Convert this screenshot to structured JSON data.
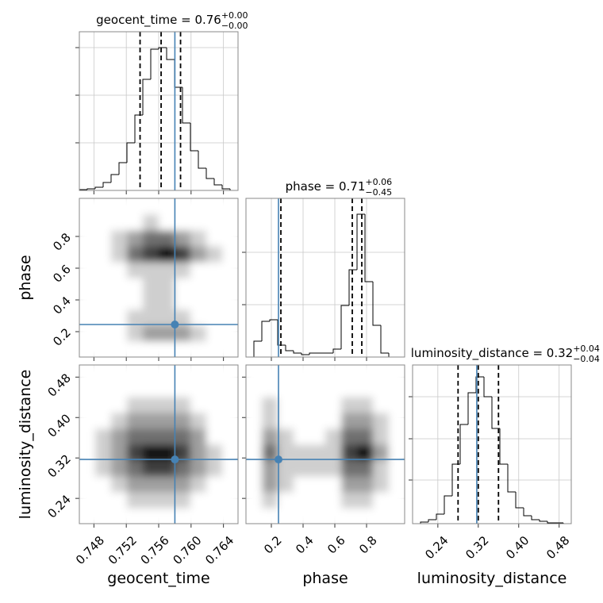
{
  "chart_data": {
    "type": "corner",
    "truth_color": "#4682b4",
    "grid": true,
    "parameters": [
      {
        "name": "geocent_time",
        "title": "geocent_time = 0.76",
        "title_plus": "+0.00",
        "title_minus": "−0.00",
        "lim": [
          0.7462,
          0.7658
        ],
        "ticks": [
          0.748,
          0.752,
          0.756,
          {
            "value": 0.76,
            "label": "0.760"
          },
          0.764
        ],
        "truth": 0.758,
        "quantiles": [
          0.7537,
          0.7563,
          0.7587
        ],
        "hist": {
          "bins": [
            0.7462,
            0.74718,
            0.74816,
            0.74914,
            0.75012,
            0.7511,
            0.75208,
            0.75306,
            0.75404,
            0.75502,
            0.756,
            0.75698,
            0.75796,
            0.75894,
            0.75992,
            0.7609,
            0.76188,
            0.76286,
            0.76384,
            0.76482,
            0.7658
          ],
          "counts": [
            1,
            2,
            4,
            10,
            20,
            35,
            60,
            95,
            140,
            178,
            180,
            165,
            130,
            85,
            50,
            28,
            15,
            7,
            2,
            0
          ],
          "ylim": [
            0,
            200
          ],
          "yticks": [
            60,
            120,
            180
          ]
        },
        "edges2d": [
          0.7462,
          0.74816,
          0.75012,
          0.75208,
          0.75404,
          0.756,
          0.75796,
          0.75992,
          0.76188,
          0.76384,
          0.7658
        ]
      },
      {
        "name": "phase",
        "title": "phase = 0.71",
        "title_plus": "+0.06",
        "title_minus": "−0.45",
        "lim": [
          0.04,
          1.04
        ],
        "ticks": [
          0.2,
          0.4,
          0.6,
          0.8
        ],
        "truth": 0.245,
        "quantiles": [
          0.26,
          0.71,
          0.77
        ],
        "hist": {
          "bins": [
            0.04,
            0.09,
            0.14,
            0.19,
            0.24,
            0.29,
            0.34,
            0.39,
            0.44,
            0.49,
            0.54,
            0.59,
            0.64,
            0.69,
            0.74,
            0.79,
            0.84,
            0.89,
            0.94,
            0.99,
            1.04
          ],
          "counts": [
            0,
            20,
            45,
            47,
            15,
            8,
            5,
            3,
            5,
            5,
            5,
            10,
            65,
            110,
            180,
            95,
            40,
            5,
            0,
            0
          ],
          "ylim": [
            0,
            200
          ],
          "yticks": [
            66,
            132
          ]
        },
        "edges2d": [
          0.04,
          0.14,
          0.24,
          0.34,
          0.44,
          0.54,
          0.64,
          0.74,
          0.84,
          0.94,
          1.04
        ]
      },
      {
        "name": "luminosity_distance",
        "title": "luminosity_distance = 0.32",
        "title_plus": "+0.04",
        "title_minus": "−0.04",
        "lim": [
          0.19,
          0.504
        ],
        "ticks": [
          0.24,
          0.32,
          {
            "value": 0.4,
            "label": "0.40"
          },
          0.48
        ],
        "truth": 0.317,
        "quantiles": [
          0.28,
          0.32,
          0.36
        ],
        "hist": {
          "bins": [
            0.19,
            0.2057,
            0.2214,
            0.2371,
            0.2528,
            0.2685,
            0.2842,
            0.2999,
            0.3156,
            0.3313,
            0.347,
            0.3627,
            0.3784,
            0.3941,
            0.4098,
            0.4255,
            0.4412,
            0.4569,
            0.4726,
            0.4883,
            0.504
          ],
          "counts": [
            0,
            2,
            5,
            12,
            35,
            75,
            125,
            165,
            185,
            160,
            120,
            75,
            40,
            20,
            10,
            5,
            3,
            1,
            1,
            0
          ],
          "ylim": [
            0,
            200
          ],
          "yticks": [
            55,
            107,
            160
          ]
        },
        "edges2d": [
          0.19,
          0.2214,
          0.2528,
          0.2842,
          0.3156,
          0.347,
          0.3784,
          0.4098,
          0.4412,
          0.4726,
          0.504
        ]
      }
    ],
    "pairs": [
      {
        "x": 0,
        "y": 1,
        "counts": [
          [
            0,
            0,
            0,
            0,
            0,
            0,
            0,
            0,
            0,
            0
          ],
          [
            0,
            0,
            0,
            1,
            2,
            2,
            2,
            1,
            0,
            0
          ],
          [
            0,
            0,
            0,
            1,
            1,
            1,
            1,
            0,
            0,
            0
          ],
          [
            0,
            0,
            0,
            0,
            1,
            1,
            0,
            0,
            0,
            0
          ],
          [
            0,
            0,
            0,
            0,
            1,
            1,
            0,
            0,
            0,
            0
          ],
          [
            0,
            0,
            0,
            1,
            1,
            1,
            1,
            0,
            0,
            0
          ],
          [
            0,
            0,
            1,
            3,
            4,
            5,
            4,
            2,
            1,
            0
          ],
          [
            0,
            0,
            1,
            2,
            3,
            3,
            2,
            1,
            0,
            0
          ],
          [
            0,
            0,
            0,
            0,
            1,
            0,
            0,
            0,
            0,
            0
          ],
          [
            0,
            0,
            0,
            0,
            0,
            0,
            0,
            0,
            0,
            0
          ]
        ]
      },
      {
        "x": 0,
        "y": 2,
        "counts": [
          [
            0,
            0,
            0,
            0,
            0,
            0,
            0,
            0,
            0,
            0
          ],
          [
            0,
            0,
            0,
            1,
            1,
            1,
            1,
            0,
            0,
            0
          ],
          [
            0,
            0,
            1,
            2,
            2,
            2,
            2,
            1,
            0,
            0
          ],
          [
            0,
            1,
            2,
            3,
            4,
            4,
            3,
            2,
            1,
            0
          ],
          [
            0,
            1,
            2,
            4,
            5,
            5,
            4,
            2,
            1,
            0
          ],
          [
            0,
            1,
            2,
            3,
            3,
            3,
            3,
            2,
            0,
            0
          ],
          [
            0,
            0,
            1,
            2,
            2,
            2,
            2,
            1,
            0,
            0
          ],
          [
            0,
            0,
            0,
            1,
            1,
            1,
            1,
            0,
            0,
            0
          ],
          [
            0,
            0,
            0,
            0,
            0,
            0,
            0,
            0,
            0,
            0
          ],
          [
            0,
            0,
            0,
            0,
            0,
            0,
            0,
            0,
            0,
            0
          ]
        ]
      },
      {
        "x": 1,
        "y": 2,
        "counts": [
          [
            0,
            0,
            0,
            0,
            0,
            0,
            0,
            0,
            0,
            0
          ],
          [
            0,
            1,
            0,
            0,
            0,
            0,
            1,
            1,
            0,
            0
          ],
          [
            0,
            2,
            1,
            0,
            0,
            0,
            2,
            2,
            1,
            0
          ],
          [
            0,
            2,
            1,
            1,
            1,
            1,
            3,
            3,
            1,
            0
          ],
          [
            0,
            3,
            1,
            1,
            1,
            1,
            4,
            5,
            2,
            0
          ],
          [
            0,
            2,
            1,
            0,
            0,
            1,
            3,
            3,
            1,
            0
          ],
          [
            0,
            1,
            0,
            0,
            0,
            0,
            2,
            2,
            1,
            0
          ],
          [
            0,
            1,
            0,
            0,
            0,
            0,
            1,
            1,
            0,
            0
          ],
          [
            0,
            0,
            0,
            0,
            0,
            0,
            0,
            0,
            0,
            0
          ],
          [
            0,
            0,
            0,
            0,
            0,
            0,
            0,
            0,
            0,
            0
          ]
        ]
      }
    ]
  }
}
